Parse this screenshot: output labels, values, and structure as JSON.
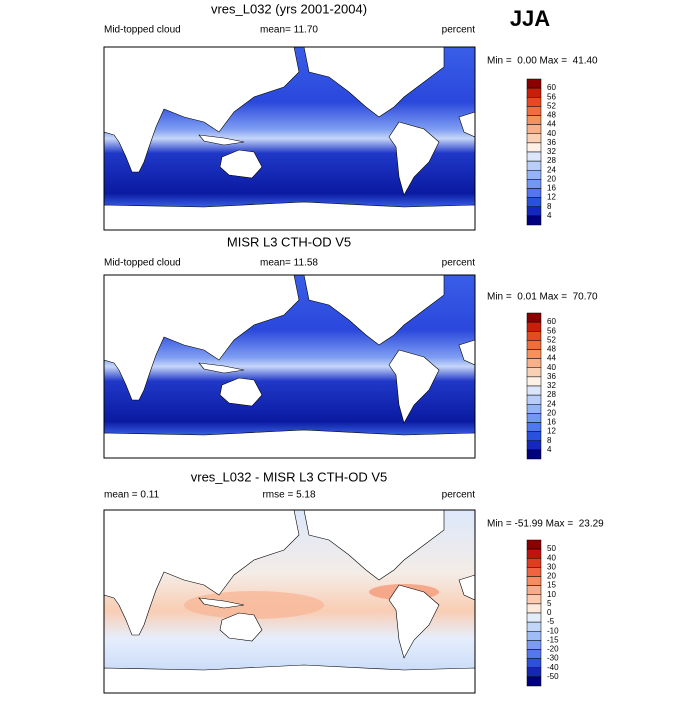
{
  "header": {
    "season": "JJA"
  },
  "panels": [
    {
      "title": "vres_L032 (yrs 2001-2004)",
      "left": "Mid-topped cloud",
      "center": "mean=  11.70",
      "right": "percent",
      "minmax": "Min =  0.00 Max =  41.40",
      "colorbar": {
        "labels": [
          60,
          56,
          52,
          48,
          44,
          40,
          36,
          32,
          28,
          24,
          20,
          16,
          12,
          8,
          4
        ],
        "colors": [
          "#8b0000",
          "#c81e0a",
          "#e64a1e",
          "#f06e3c",
          "#f5915f",
          "#f8b08a",
          "#fad0b4",
          "#fdf0e4",
          "#dbe6fb",
          "#b8cdf8",
          "#95b4f7",
          "#7098f5",
          "#4d78f0",
          "#2a50e0",
          "#1428c0",
          "#000080"
        ]
      }
    },
    {
      "title": "MISR L3 CTH-OD V5",
      "left": "Mid-topped cloud",
      "center": "mean=  11.58",
      "right": "percent",
      "minmax": "Min =  0.01 Max =  70.70",
      "colorbar": {
        "labels": [
          60,
          56,
          52,
          48,
          44,
          40,
          36,
          32,
          28,
          24,
          20,
          16,
          12,
          8,
          4
        ],
        "colors": [
          "#8b0000",
          "#c81e0a",
          "#e64a1e",
          "#f06e3c",
          "#f5915f",
          "#f8b08a",
          "#fad0b4",
          "#fdf0e4",
          "#dbe6fb",
          "#b8cdf8",
          "#95b4f7",
          "#7098f5",
          "#4d78f0",
          "#2a50e0",
          "#1428c0",
          "#000080"
        ]
      }
    },
    {
      "title": "vres_L032 - MISR L3 CTH-OD V5",
      "left": "mean =   0.11",
      "center": "rmse =    5.18",
      "right": "percent",
      "minmax": "Min = -51.99 Max =  23.29",
      "colorbar": {
        "labels": [
          50,
          40,
          30,
          20,
          15,
          10,
          5,
          0,
          -5,
          -10,
          -15,
          -20,
          -30,
          -40,
          -50
        ],
        "colors": [
          "#8b0000",
          "#c0140a",
          "#e03c1e",
          "#f06440",
          "#f58c64",
          "#f8ac8a",
          "#fbcab0",
          "#fde8dc",
          "#e2ecfb",
          "#c2d6f8",
          "#a0bcf6",
          "#7c9cf2",
          "#5478ea",
          "#2e50dc",
          "#1428b4",
          "#000080"
        ]
      }
    }
  ]
}
